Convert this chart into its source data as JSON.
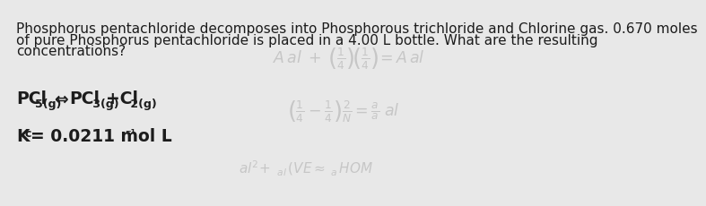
{
  "bg_color": "#e8e8e8",
  "text_color": "#1c1c1c",
  "paragraph_line1": "Phosphorus pentachloride decomposes into Phosphorous trichloride and Chlorine gas. 0.670 moles",
  "paragraph_line2": "of pure Phosphorus pentachloride is placed in a 4.00 L bottle. What are the resulting",
  "paragraph_line3": "concentrations?",
  "para_fontsize": 11.0,
  "eq_fontsize": 13.5,
  "eq_sub_fontsize": 9.0,
  "kc_fontsize": 13.5,
  "kc_sub_fontsize": 9.0,
  "watermark_color": "#888888",
  "watermark_alpha": 0.35,
  "watermark_fontsize": 12.5
}
